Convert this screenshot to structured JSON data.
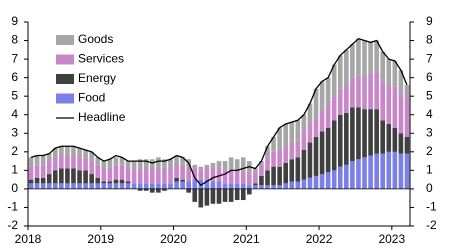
{
  "chart_data": {
    "type": "stacked-bar-line",
    "categories": [
      "2018",
      null,
      null,
      null,
      null,
      null,
      null,
      null,
      null,
      null,
      null,
      null,
      "2019",
      null,
      null,
      null,
      null,
      null,
      null,
      null,
      null,
      null,
      null,
      null,
      "2020",
      null,
      null,
      null,
      null,
      null,
      null,
      null,
      null,
      null,
      null,
      null,
      "2021",
      null,
      null,
      null,
      null,
      null,
      null,
      null,
      null,
      null,
      null,
      null,
      "2022",
      null,
      null,
      null,
      null,
      null,
      null,
      null,
      null,
      null,
      null,
      null,
      "2023",
      null,
      null
    ],
    "series": [
      {
        "name": "Goods",
        "color": "#a6a6a6",
        "kind": "bar",
        "values": [
          0.5,
          0.5,
          0.5,
          0.4,
          0.5,
          0.5,
          0.5,
          0.5,
          0.5,
          0.4,
          0.5,
          0.4,
          0.4,
          0.5,
          0.4,
          0.4,
          0.4,
          0.5,
          0.5,
          0.5,
          0.5,
          0.6,
          0.5,
          0.5,
          0.4,
          0.4,
          0.5,
          0.2,
          0.2,
          0.2,
          0.3,
          0.4,
          0.5,
          0.7,
          0.6,
          0.7,
          0.7,
          0.2,
          0.2,
          0.6,
          0.8,
          1.2,
          1.2,
          1.1,
          1.1,
          0.9,
          1.1,
          1.6,
          1.6,
          1.5,
          1.7,
          1.8,
          1.9,
          1.8,
          2.0,
          1.9,
          1.7,
          1.7,
          1.6,
          1.4,
          1.4,
          1.3,
          0.7
        ]
      },
      {
        "name": "Services",
        "color": "#c987c9",
        "kind": "bar",
        "values": [
          0.7,
          0.7,
          0.7,
          0.7,
          0.7,
          0.7,
          0.7,
          0.7,
          0.7,
          0.7,
          0.7,
          0.7,
          0.7,
          0.7,
          0.8,
          0.8,
          0.7,
          0.7,
          0.8,
          0.8,
          0.8,
          0.8,
          0.8,
          0.8,
          0.8,
          0.8,
          0.7,
          0.6,
          0.5,
          0.6,
          0.7,
          0.7,
          0.7,
          0.7,
          0.7,
          0.7,
          0.6,
          0.6,
          0.6,
          0.7,
          0.8,
          0.9,
          0.9,
          0.9,
          0.9,
          1.0,
          1.0,
          1.0,
          1.1,
          1.2,
          1.3,
          1.4,
          1.5,
          1.6,
          1.7,
          1.8,
          1.9,
          2.0,
          2.1,
          2.1,
          2.2,
          2.1,
          2.1
        ]
      },
      {
        "name": "Energy",
        "color": "#404040",
        "kind": "bar",
        "values": [
          0.2,
          0.3,
          0.3,
          0.5,
          0.7,
          0.8,
          0.8,
          0.8,
          0.7,
          0.7,
          0.5,
          0.3,
          0.1,
          0.1,
          0.2,
          0.2,
          0.1,
          0.0,
          -0.1,
          -0.1,
          -0.2,
          -0.2,
          -0.1,
          0.0,
          0.2,
          0.1,
          -0.2,
          -0.7,
          -1.0,
          -0.9,
          -0.8,
          -0.8,
          -0.7,
          -0.7,
          -0.6,
          -0.6,
          -0.3,
          0.1,
          0.5,
          0.8,
          1.0,
          1.0,
          1.1,
          1.2,
          1.3,
          1.6,
          1.9,
          2.1,
          2.3,
          2.4,
          2.7,
          2.8,
          2.8,
          2.9,
          2.8,
          2.6,
          2.5,
          2.4,
          1.8,
          1.5,
          1.3,
          1.1,
          0.9
        ]
      },
      {
        "name": "Food",
        "color": "#7b7fe8",
        "kind": "bar",
        "values": [
          0.3,
          0.3,
          0.3,
          0.3,
          0.3,
          0.3,
          0.3,
          0.3,
          0.3,
          0.3,
          0.3,
          0.3,
          0.3,
          0.3,
          0.3,
          0.3,
          0.3,
          0.3,
          0.3,
          0.3,
          0.3,
          0.3,
          0.3,
          0.3,
          0.4,
          0.4,
          0.4,
          0.5,
          0.5,
          0.5,
          0.4,
          0.4,
          0.3,
          0.3,
          0.3,
          0.3,
          0.2,
          0.2,
          0.2,
          0.2,
          0.2,
          0.2,
          0.3,
          0.4,
          0.4,
          0.5,
          0.6,
          0.7,
          0.8,
          0.9,
          1.0,
          1.2,
          1.3,
          1.5,
          1.6,
          1.7,
          1.8,
          1.9,
          1.9,
          2.0,
          2.0,
          1.9,
          1.9
        ]
      },
      {
        "name": "Headline",
        "color": "#000000",
        "kind": "line",
        "values": [
          1.7,
          1.8,
          1.8,
          1.9,
          2.2,
          2.3,
          2.3,
          2.3,
          2.2,
          2.1,
          2.0,
          1.7,
          1.5,
          1.6,
          1.8,
          1.7,
          1.5,
          1.5,
          1.5,
          1.5,
          1.4,
          1.5,
          1.5,
          1.6,
          1.8,
          1.7,
          1.4,
          0.6,
          0.2,
          0.4,
          0.6,
          0.7,
          0.8,
          1.0,
          1.0,
          1.1,
          1.2,
          1.1,
          1.5,
          2.3,
          2.8,
          3.3,
          3.5,
          3.6,
          3.7,
          4.0,
          4.6,
          5.4,
          5.8,
          6.0,
          6.7,
          7.2,
          7.5,
          7.8,
          8.1,
          8.0,
          7.9,
          8.0,
          7.4,
          7.0,
          6.9,
          6.4,
          5.6
        ]
      }
    ],
    "ylim": [
      -2,
      9
    ],
    "yticks": [
      -2,
      -1,
      0,
      1,
      2,
      3,
      4,
      5,
      6,
      7,
      8,
      9
    ],
    "y2lim": [
      -2,
      9
    ],
    "y2ticks": [
      -2,
      -1,
      0,
      1,
      2,
      3,
      4,
      5,
      6,
      7,
      8,
      9
    ]
  }
}
